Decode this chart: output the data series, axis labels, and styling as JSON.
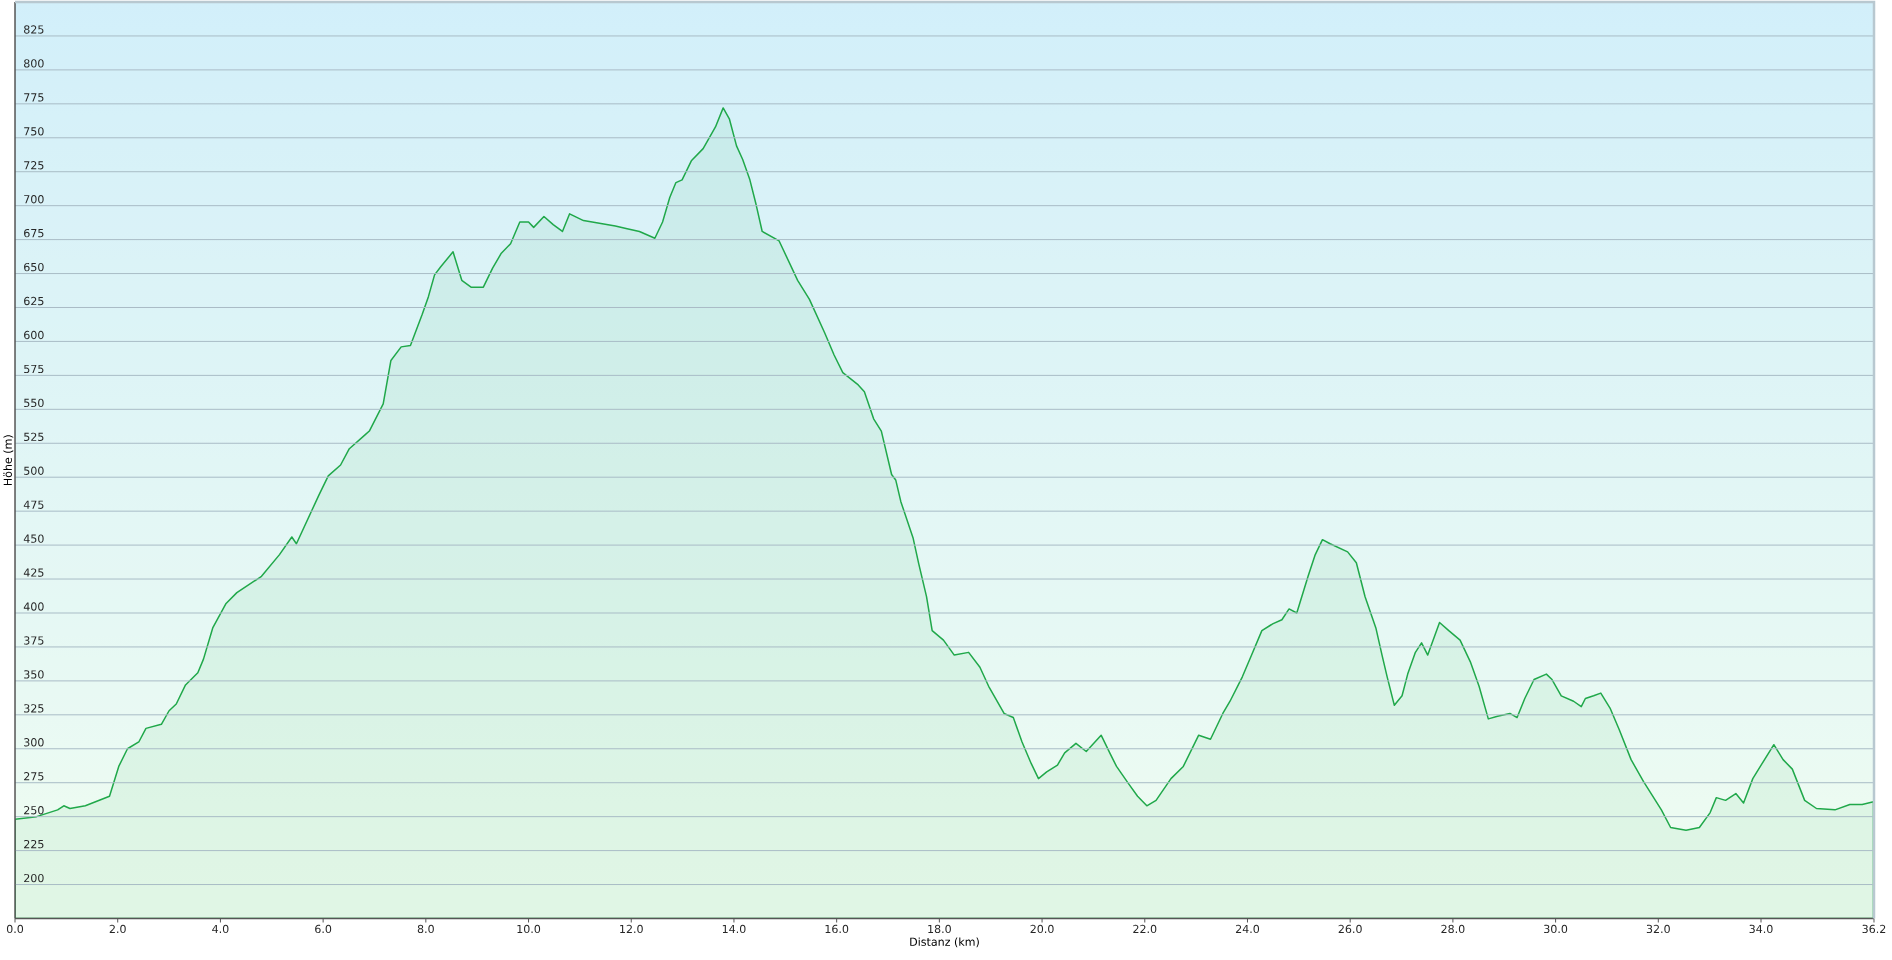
{
  "chart_data": {
    "type": "area",
    "xlabel": "Distanz (km)",
    "ylabel": "Höhe (m)",
    "color": "#20a84a",
    "grid": "y",
    "xlim": [
      0,
      36.2
    ],
    "ylim": [
      175,
      850
    ],
    "xticks": [
      {
        "value": 0,
        "label": "0.0"
      },
      {
        "value": 2,
        "label": "2.0"
      },
      {
        "value": 4,
        "label": "4.0"
      },
      {
        "value": 6,
        "label": "6.0"
      },
      {
        "value": 8,
        "label": "8.0"
      },
      {
        "value": 10,
        "label": "10.0"
      },
      {
        "value": 12,
        "label": "12.0"
      },
      {
        "value": 14,
        "label": "14.0"
      },
      {
        "value": 16,
        "label": "16.0"
      },
      {
        "value": 18,
        "label": "18.0"
      },
      {
        "value": 20,
        "label": "20.0"
      },
      {
        "value": 22,
        "label": "22.0"
      },
      {
        "value": 24,
        "label": "24.0"
      },
      {
        "value": 26,
        "label": "26.0"
      },
      {
        "value": 28,
        "label": "28.0"
      },
      {
        "value": 30,
        "label": "30.0"
      },
      {
        "value": 32,
        "label": "32.0"
      },
      {
        "value": 34,
        "label": "34.0"
      },
      {
        "value": 36.2,
        "label": "36.2"
      }
    ],
    "yticks": [
      200,
      225,
      250,
      275,
      300,
      325,
      350,
      375,
      400,
      425,
      450,
      475,
      500,
      525,
      550,
      575,
      600,
      625,
      650,
      675,
      700,
      725,
      750,
      775,
      800,
      825
    ],
    "x": [
      0,
      0.42,
      0.83,
      0.95,
      1.07,
      1.37,
      1.84,
      2.02,
      2.19,
      2.41,
      2.55,
      2.85,
      3.0,
      3.14,
      3.32,
      3.56,
      3.67,
      3.85,
      4.11,
      4.32,
      4.8,
      5.15,
      5.39,
      5.48,
      5.92,
      6.1,
      6.34,
      6.51,
      6.81,
      6.9,
      7.17,
      7.32,
      7.52,
      7.7,
      7.93,
      8.05,
      8.17,
      8.29,
      8.53,
      8.7,
      8.88,
      9.12,
      9.3,
      9.47,
      9.65,
      9.83,
      10.0,
      10.1,
      10.3,
      10.48,
      10.66,
      10.8,
      11.07,
      11.69,
      11.92,
      12.16,
      12.46,
      12.61,
      12.75,
      12.87,
      12.99,
      13.17,
      13.4,
      13.64,
      13.79,
      13.91,
      14.05,
      14.17,
      14.31,
      14.43,
      14.55,
      14.88,
      15.24,
      15.47,
      15.77,
      15.95,
      16.12,
      16.42,
      16.54,
      16.72,
      16.87,
      17.07,
      17.15,
      17.25,
      17.49,
      17.6,
      17.75,
      17.86,
      18.08,
      18.29,
      18.57,
      18.79,
      18.96,
      19.26,
      19.44,
      19.61,
      19.79,
      19.93,
      20.09,
      20.3,
      20.44,
      20.66,
      20.86,
      21.15,
      21.33,
      21.45,
      21.69,
      21.86,
      22.04,
      22.22,
      22.51,
      22.75,
      23.05,
      23.28,
      23.52,
      23.66,
      23.9,
      24.08,
      24.28,
      24.49,
      24.67,
      24.81,
      24.96,
      25.18,
      25.32,
      25.46,
      25.61,
      25.95,
      26.12,
      26.29,
      26.5,
      26.62,
      26.72,
      26.86,
      27.01,
      27.12,
      27.27,
      27.39,
      27.51,
      27.74,
      27.92,
      28.14,
      28.34,
      28.51,
      28.69,
      28.87,
      29.11,
      29.25,
      29.4,
      29.58,
      29.82,
      29.93,
      30.11,
      30.35,
      30.5,
      30.58,
      30.74,
      30.88,
      31.06,
      31.24,
      31.47,
      31.71,
      32.06,
      32.24,
      32.54,
      32.8,
      33.01,
      33.13,
      33.31,
      33.51,
      33.66,
      33.84,
      34.02,
      34.25,
      34.43,
      34.61,
      34.85,
      35.08,
      35.44,
      35.73,
      35.97,
      36.19
    ],
    "values": [
      248,
      250,
      255,
      258,
      256,
      258,
      265,
      287,
      300,
      305,
      315,
      318,
      328,
      333,
      347,
      356,
      366,
      389,
      407,
      415,
      427,
      443,
      456,
      451,
      487,
      501,
      509,
      521,
      531,
      534,
      554,
      586,
      596,
      597,
      620,
      633,
      649,
      655,
      666,
      645,
      640,
      640,
      654,
      665,
      672,
      688,
      688,
      684,
      692,
      686,
      681,
      694,
      689,
      685,
      683,
      681,
      676,
      688,
      706,
      717,
      719,
      733,
      742,
      758,
      772,
      764,
      744,
      734,
      719,
      701,
      681,
      674,
      645,
      631,
      606,
      590,
      577,
      568,
      563,
      543,
      534,
      502,
      498,
      482,
      455,
      436,
      412,
      387,
      380,
      369,
      371,
      360,
      346,
      326,
      323,
      305,
      289,
      278,
      283,
      288,
      297,
      304,
      298,
      310,
      296,
      287,
      274,
      265,
      258,
      262,
      278,
      287,
      310,
      307,
      326,
      335,
      353,
      369,
      387,
      392,
      395,
      403,
      400,
      427,
      443,
      454,
      451,
      445,
      437,
      412,
      389,
      369,
      353,
      332,
      339,
      355,
      371,
      378,
      369,
      393,
      387,
      380,
      364,
      346,
      322,
      324,
      326,
      323,
      337,
      351,
      355,
      351,
      339,
      335,
      331,
      337,
      339,
      341,
      330,
      314,
      292,
      276,
      255,
      242,
      240,
      242,
      253,
      264,
      262,
      267,
      260,
      278,
      289,
      303,
      292,
      285,
      262,
      256,
      255,
      259,
      259,
      261
    ]
  }
}
